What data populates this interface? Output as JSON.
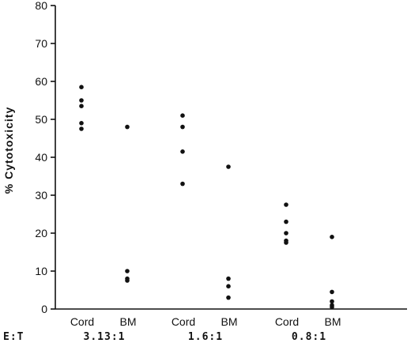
{
  "chart_data": {
    "type": "scatter",
    "title": "",
    "ylabel": "% Cytotoxicity",
    "xlabel": "E:T",
    "ylim": [
      0,
      80
    ],
    "yticks": [
      0,
      10,
      20,
      30,
      40,
      50,
      60,
      70,
      80
    ],
    "grid": false,
    "groups": [
      {
        "ratio": "3.13:1",
        "series": [
          {
            "name": "Cord",
            "values": [
              58.5,
              55,
              53.5,
              49,
              47.5
            ]
          },
          {
            "name": "BM",
            "values": [
              48,
              10,
              8,
              7.5
            ]
          }
        ]
      },
      {
        "ratio": "1.6:1",
        "series": [
          {
            "name": "Cord",
            "values": [
              51,
              48,
              41.5,
              33
            ]
          },
          {
            "name": "BM",
            "values": [
              37.5,
              8,
              6,
              3
            ]
          }
        ]
      },
      {
        "ratio": "0.8:1",
        "series": [
          {
            "name": "Cord",
            "values": [
              27.5,
              23,
              20,
              18,
              17.5
            ]
          },
          {
            "name": "BM",
            "values": [
              19,
              4.5,
              2,
              1,
              0.5
            ]
          }
        ]
      }
    ]
  }
}
